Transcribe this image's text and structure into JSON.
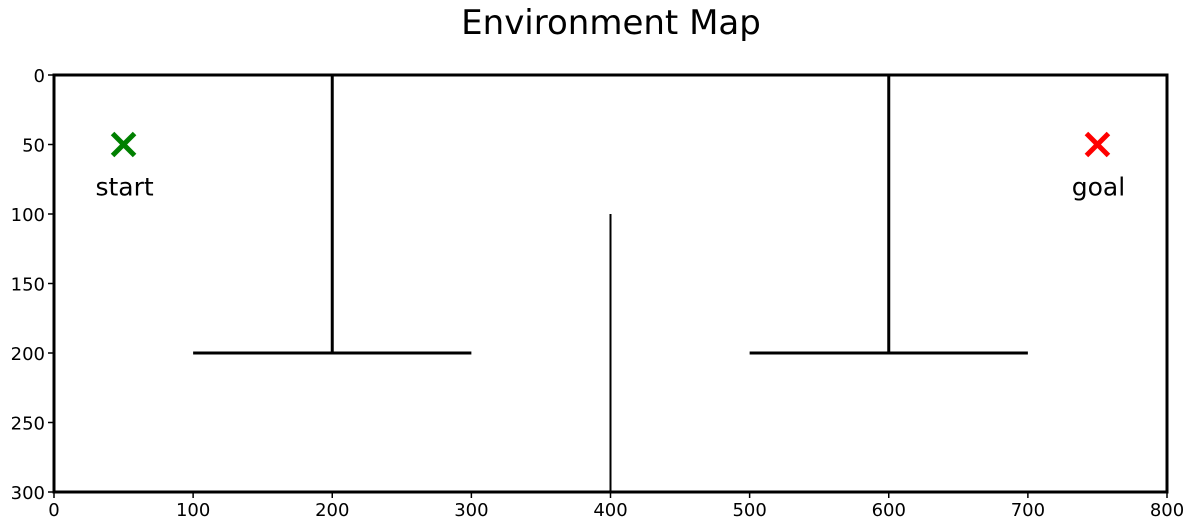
{
  "chart_data": {
    "type": "scatter",
    "title": "Environment Map",
    "xlabel": "",
    "ylabel": "",
    "xlim": [
      0,
      800
    ],
    "ylim": [
      300,
      0
    ],
    "y_inverted": true,
    "grid": false,
    "x_ticks": [
      "0",
      "100",
      "200",
      "300",
      "400",
      "500",
      "600",
      "700",
      "800"
    ],
    "y_ticks": [
      "0",
      "50",
      "100",
      "150",
      "200",
      "250",
      "300"
    ],
    "walls": [
      {
        "x1": 200,
        "y1": 0,
        "x2": 200,
        "y2": 200
      },
      {
        "x1": 100,
        "y1": 200,
        "x2": 300,
        "y2": 200
      },
      {
        "x1": 600,
        "y1": 0,
        "x2": 600,
        "y2": 200
      },
      {
        "x1": 500,
        "y1": 200,
        "x2": 700,
        "y2": 200
      },
      {
        "x1": 400,
        "y1": 100,
        "x2": 400,
        "y2": 300
      }
    ],
    "wall_color": "#000000",
    "markers": [
      {
        "label": "start",
        "x": 50,
        "y": 50,
        "marker": "x",
        "color": "#008000"
      },
      {
        "label": "goal",
        "x": 750,
        "y": 50,
        "marker": "x",
        "color": "#ff0000"
      }
    ]
  }
}
